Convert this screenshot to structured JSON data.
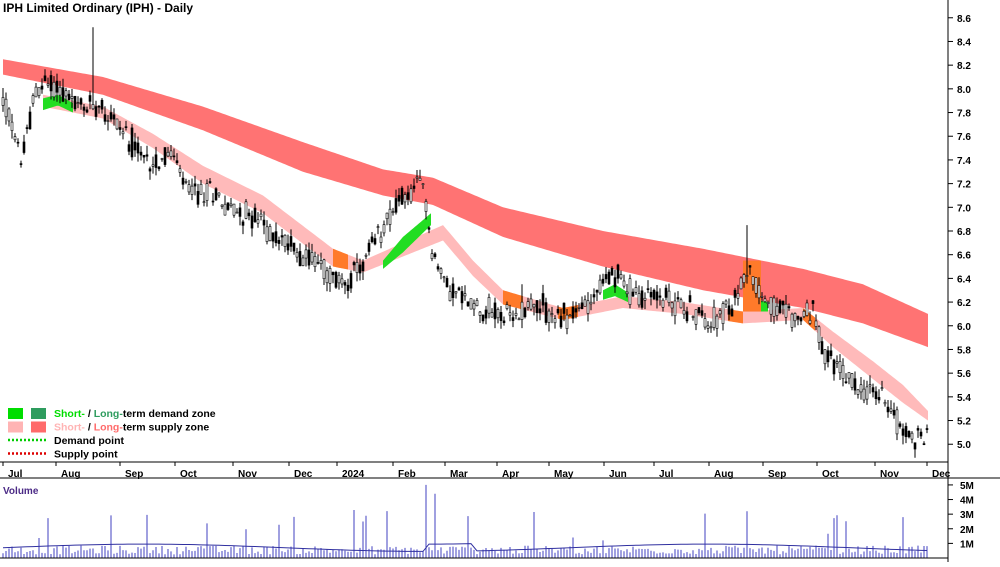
{
  "chart_data": {
    "type": "candlestick",
    "title": "IPH Limited Ordinary (IPH) - Daily",
    "volume_label": "Volume",
    "y_ticks": [
      "8.6",
      "8.4",
      "8.2",
      "8.0",
      "7.8",
      "7.6",
      "7.4",
      "7.2",
      "7.0",
      "6.8",
      "6.6",
      "6.4",
      "6.2",
      "6.0",
      "5.8",
      "5.6",
      "5.4",
      "5.2",
      "5.0"
    ],
    "ylim": [
      4.85,
      8.75
    ],
    "volume_ticks": [
      "5M",
      "4M",
      "3M",
      "2M",
      "1M"
    ],
    "volume_ylim": [
      0,
      5200000
    ],
    "x_labels": [
      "Jul",
      "Aug",
      "Sep",
      "Oct",
      "Nov",
      "Dec",
      "2024",
      "Feb",
      "Mar",
      "Apr",
      "May",
      "Jun",
      "Jul",
      "Aug",
      "Sep",
      "Oct",
      "Nov",
      "Dec"
    ],
    "price_path": [
      [
        0,
        7.9
      ],
      [
        8,
        7.72
      ],
      [
        14,
        7.5
      ],
      [
        20,
        7.42
      ],
      [
        30,
        7.9
      ],
      [
        40,
        8.05
      ],
      [
        55,
        8.02
      ],
      [
        70,
        7.88
      ],
      [
        80,
        7.82
      ],
      [
        95,
        7.9
      ],
      [
        110,
        7.75
      ],
      [
        125,
        7.6
      ],
      [
        140,
        7.4
      ],
      [
        155,
        7.4
      ],
      [
        170,
        7.45
      ],
      [
        180,
        7.2
      ],
      [
        195,
        7.1
      ],
      [
        210,
        7.15
      ],
      [
        225,
        7.0
      ],
      [
        240,
        6.95
      ],
      [
        255,
        6.9
      ],
      [
        270,
        6.75
      ],
      [
        285,
        6.7
      ],
      [
        300,
        6.6
      ],
      [
        315,
        6.55
      ],
      [
        330,
        6.38
      ],
      [
        345,
        6.38
      ],
      [
        360,
        6.5
      ],
      [
        375,
        6.75
      ],
      [
        390,
        7.0
      ],
      [
        405,
        7.1
      ],
      [
        420,
        7.2
      ],
      [
        428,
        6.7
      ],
      [
        436,
        6.45
      ],
      [
        450,
        6.3
      ],
      [
        465,
        6.2
      ],
      [
        480,
        6.15
      ],
      [
        495,
        6.1
      ],
      [
        510,
        6.05
      ],
      [
        525,
        6.2
      ],
      [
        540,
        6.15
      ],
      [
        555,
        6.05
      ],
      [
        570,
        6.1
      ],
      [
        585,
        6.2
      ],
      [
        600,
        6.35
      ],
      [
        612,
        6.45
      ],
      [
        625,
        6.3
      ],
      [
        640,
        6.25
      ],
      [
        655,
        6.25
      ],
      [
        670,
        6.2
      ],
      [
        685,
        6.15
      ],
      [
        700,
        6.05
      ],
      [
        715,
        6.08
      ],
      [
        730,
        6.15
      ],
      [
        745,
        6.5
      ],
      [
        755,
        6.3
      ],
      [
        770,
        6.15
      ],
      [
        785,
        6.1
      ],
      [
        800,
        6.05
      ],
      [
        810,
        6.15
      ],
      [
        820,
        5.75
      ],
      [
        835,
        5.65
      ],
      [
        850,
        5.5
      ],
      [
        865,
        5.45
      ],
      [
        880,
        5.4
      ],
      [
        890,
        5.3
      ],
      [
        900,
        5.1
      ],
      [
        910,
        5.05
      ],
      [
        925,
        5.1
      ]
    ],
    "long_term_supply_zone": {
      "upper": [
        [
          0,
          8.25
        ],
        [
          100,
          8.1
        ],
        [
          200,
          7.85
        ],
        [
          300,
          7.55
        ],
        [
          380,
          7.32
        ],
        [
          430,
          7.25
        ],
        [
          500,
          7.0
        ],
        [
          600,
          6.8
        ],
        [
          700,
          6.65
        ],
        [
          800,
          6.48
        ],
        [
          860,
          6.35
        ],
        [
          925,
          6.1
        ]
      ],
      "lower": [
        [
          0,
          8.12
        ],
        [
          100,
          7.95
        ],
        [
          200,
          7.65
        ],
        [
          300,
          7.3
        ],
        [
          380,
          7.1
        ],
        [
          430,
          7.02
        ],
        [
          500,
          6.75
        ],
        [
          600,
          6.5
        ],
        [
          700,
          6.3
        ],
        [
          800,
          6.15
        ],
        [
          860,
          6.02
        ],
        [
          925,
          5.82
        ]
      ]
    },
    "short_term_supply_zone": {
      "upper": [
        [
          40,
          7.95
        ],
        [
          100,
          7.85
        ],
        [
          150,
          7.62
        ],
        [
          200,
          7.35
        ],
        [
          260,
          7.1
        ],
        [
          330,
          6.65
        ],
        [
          360,
          6.55
        ],
        [
          440,
          6.85
        ],
        [
          470,
          6.55
        ],
        [
          500,
          6.3
        ],
        [
          560,
          6.15
        ],
        [
          620,
          6.25
        ],
        [
          680,
          6.2
        ],
        [
          740,
          6.12
        ],
        [
          800,
          6.15
        ],
        [
          830,
          5.95
        ],
        [
          870,
          5.7
        ],
        [
          900,
          5.5
        ],
        [
          925,
          5.28
        ]
      ],
      "lower": [
        [
          40,
          7.85
        ],
        [
          100,
          7.75
        ],
        [
          150,
          7.5
        ],
        [
          200,
          7.2
        ],
        [
          260,
          6.95
        ],
        [
          330,
          6.5
        ],
        [
          360,
          6.45
        ],
        [
          440,
          6.72
        ],
        [
          470,
          6.42
        ],
        [
          500,
          6.18
        ],
        [
          560,
          6.05
        ],
        [
          620,
          6.15
        ],
        [
          680,
          6.1
        ],
        [
          740,
          6.02
        ],
        [
          800,
          6.05
        ],
        [
          830,
          5.82
        ],
        [
          870,
          5.55
        ],
        [
          900,
          5.35
        ],
        [
          925,
          5.2
        ]
      ]
    },
    "short_term_demand_zones": [
      {
        "upper": [
          [
            40,
            7.92
          ],
          [
            55,
            7.95
          ],
          [
            70,
            7.88
          ]
        ],
        "lower": [
          [
            40,
            7.82
          ],
          [
            55,
            7.86
          ],
          [
            70,
            7.8
          ]
        ]
      },
      {
        "upper": [
          [
            380,
            6.55
          ],
          [
            400,
            6.75
          ],
          [
            428,
            6.95
          ]
        ],
        "lower": [
          [
            380,
            6.48
          ],
          [
            400,
            6.62
          ],
          [
            428,
            6.85
          ]
        ]
      },
      {
        "upper": [
          [
            600,
            6.3
          ],
          [
            612,
            6.35
          ],
          [
            625,
            6.28
          ]
        ],
        "lower": [
          [
            600,
            6.22
          ],
          [
            612,
            6.25
          ],
          [
            625,
            6.2
          ]
        ]
      },
      {
        "upper": [
          [
            750,
            6.22
          ],
          [
            765,
            6.2
          ]
        ],
        "lower": [
          [
            750,
            6.12
          ],
          [
            765,
            6.12
          ]
        ]
      }
    ],
    "highlight_bar": {
      "x0": 740,
      "x1": 758,
      "low": 6.12,
      "high": 6.55
    },
    "legend": [
      {
        "type": "demand",
        "short": "Short-",
        "sep": " / ",
        "long": "Long-",
        "tail": "term demand zone",
        "short_color": "#00dd00",
        "long_color": "#2e9c5e"
      },
      {
        "type": "supply",
        "short": "Short-",
        "sep": " / ",
        "long": "Long-",
        "tail": "term supply zone",
        "short_color": "#ffb4b4",
        "long_color": "#ff6b6b"
      },
      {
        "type": "point",
        "label": "Demand point",
        "color": "#00cc00"
      },
      {
        "type": "point",
        "label": "Supply point",
        "color": "#dd0000"
      }
    ]
  }
}
